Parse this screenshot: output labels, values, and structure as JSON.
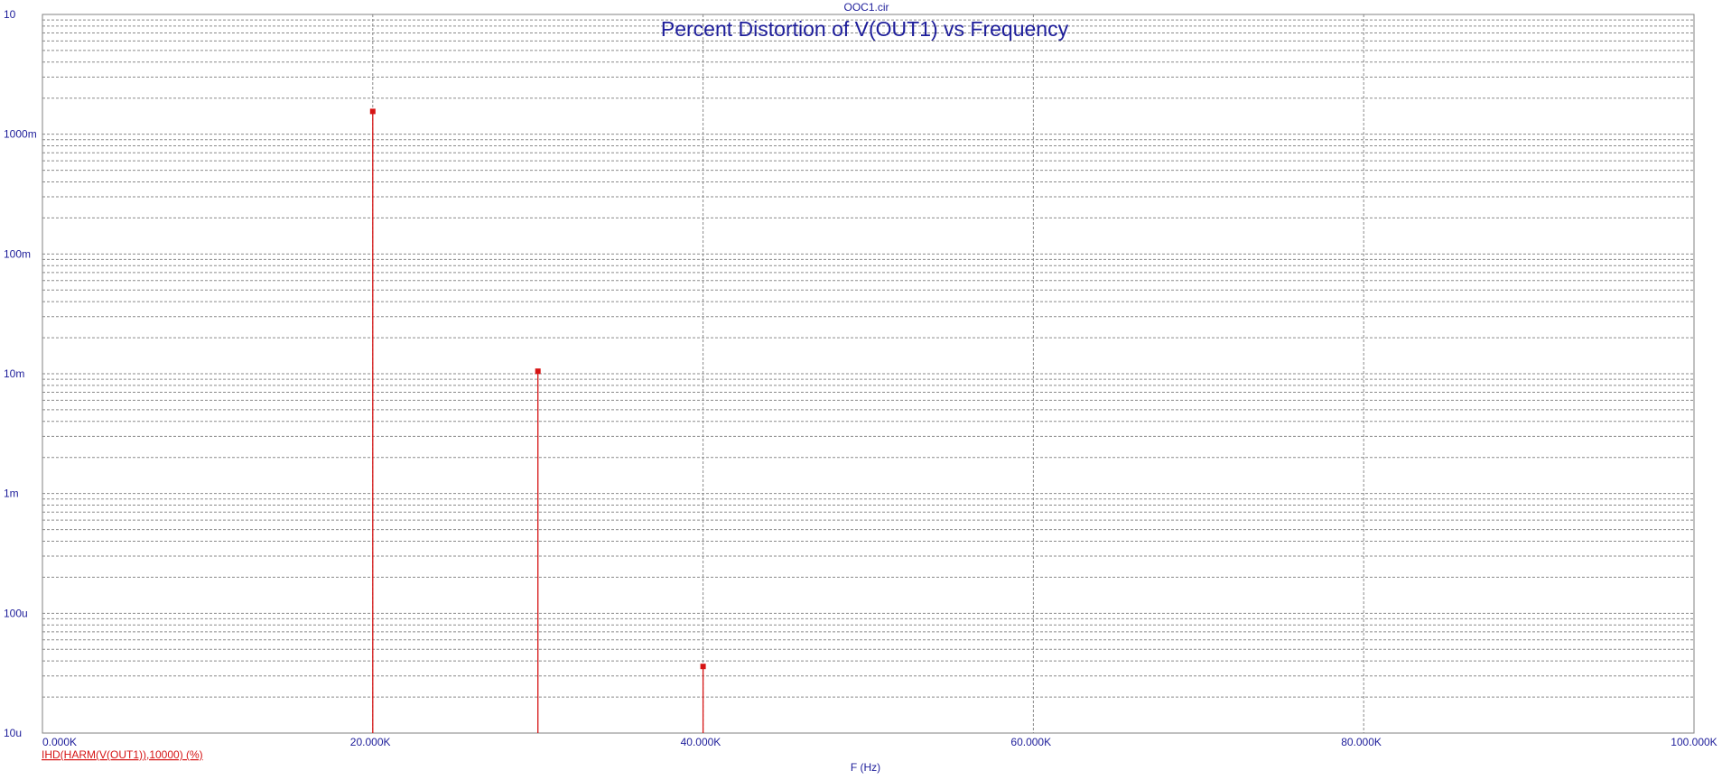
{
  "file_name": "OOC1.cir",
  "colors": {
    "background": "#ffffff",
    "plot_frame": "#808080",
    "grid": "#8a8a8a",
    "text": "#1d1d9a",
    "trace": "#d61414"
  },
  "chart_data": {
    "type": "bar",
    "title": "Percent Distortion of V(OUT1) vs Frequency",
    "xlabel": "F (Hz)",
    "ylabel": "",
    "x_scale": "linear",
    "y_scale": "log",
    "xlim": [
      0,
      100000
    ],
    "ylim": [
      1e-05,
      10
    ],
    "grid": true,
    "legend_position": "bottom-left",
    "x_ticks": [
      {
        "value": 0,
        "label": "0.000K"
      },
      {
        "value": 20000,
        "label": "20.000K"
      },
      {
        "value": 40000,
        "label": "40.000K"
      },
      {
        "value": 60000,
        "label": "60.000K"
      },
      {
        "value": 80000,
        "label": "80.000K"
      },
      {
        "value": 100000,
        "label": "100.000K"
      }
    ],
    "y_ticks": [
      {
        "value": 10,
        "label": "10"
      },
      {
        "value": 1,
        "label": "1000m"
      },
      {
        "value": 0.1,
        "label": "100m"
      },
      {
        "value": 0.01,
        "label": "10m"
      },
      {
        "value": 0.001,
        "label": "1m"
      },
      {
        "value": 0.0001,
        "label": "100u"
      },
      {
        "value": 1e-05,
        "label": "10u"
      }
    ],
    "series": [
      {
        "name": "IHD(HARM(V(OUT1)),10000) (%)",
        "x": [
          20000,
          30000,
          40000
        ],
        "y": [
          1.55,
          0.0105,
          3.6e-05
        ]
      }
    ]
  }
}
